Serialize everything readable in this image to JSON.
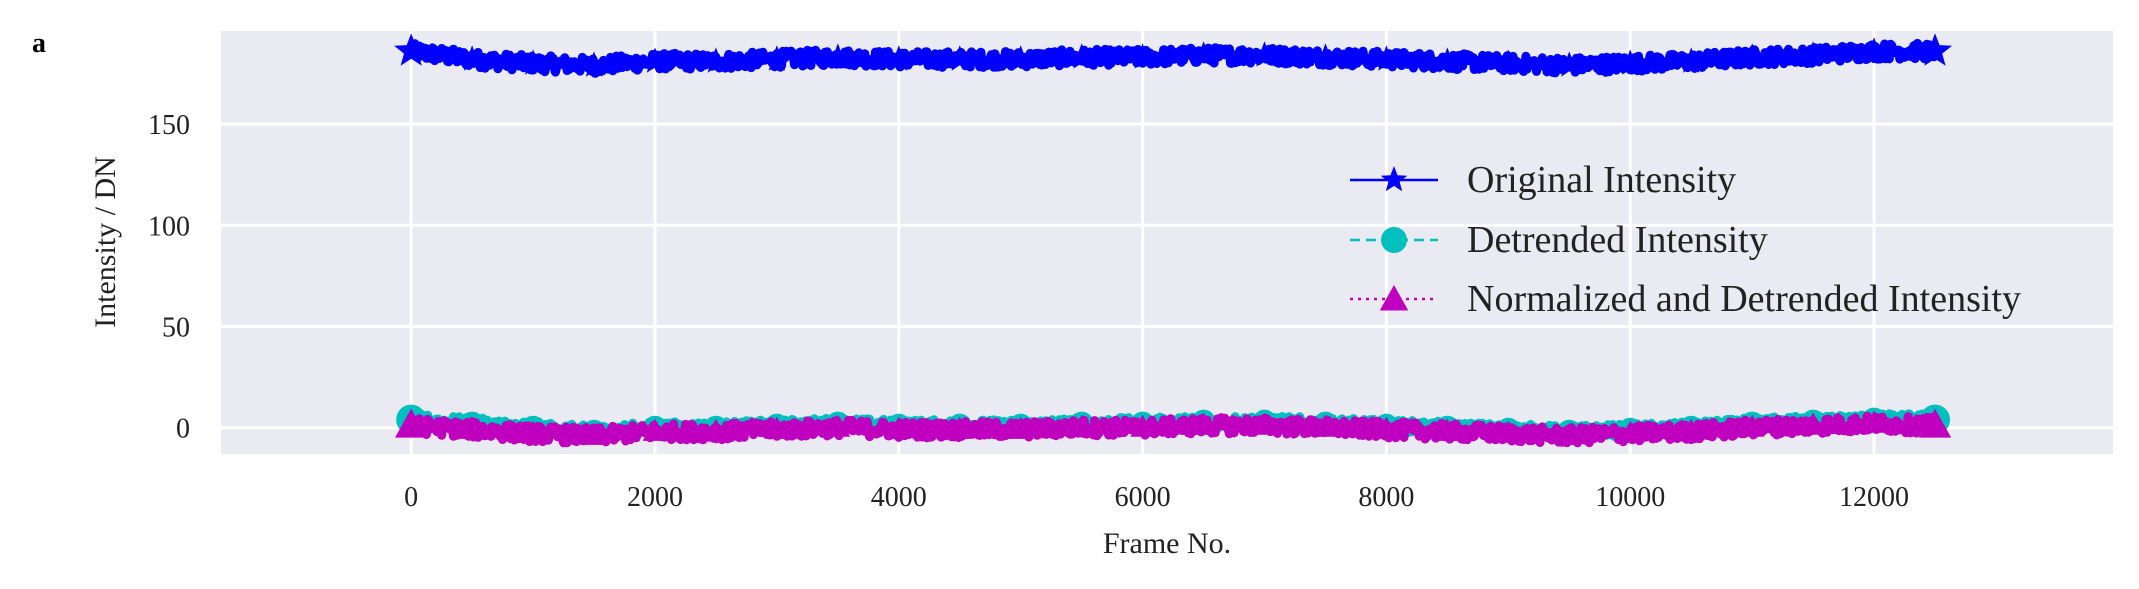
{
  "figure": {
    "panel_label": "a",
    "colors": {
      "plot_background": "#eaeaf2",
      "grid": "#ffffff",
      "original": "#0000ff",
      "detrended": "#00bfbf",
      "normalized": "#bf00bf"
    }
  },
  "chart_data": {
    "type": "line",
    "title": "",
    "xlabel": "Frame No.",
    "ylabel": "Intensity / DN",
    "xlim": [
      -1560,
      13960
    ],
    "ylim": [
      -13,
      196
    ],
    "xticks": [
      0,
      2000,
      4000,
      6000,
      8000,
      10000,
      12000
    ],
    "xtick_labels": [
      "0",
      "2000",
      "4000",
      "6000",
      "8000",
      "10000",
      "12000"
    ],
    "yticks": [
      0,
      50,
      100,
      150
    ],
    "ytick_labels": [
      "0",
      "50",
      "100",
      "150"
    ],
    "grid": true,
    "legend_position": "right",
    "x": [
      0,
      500,
      1000,
      1500,
      2000,
      2500,
      3000,
      3500,
      4000,
      4500,
      5000,
      5500,
      6000,
      6500,
      7000,
      7500,
      8000,
      8500,
      9000,
      9500,
      10000,
      10500,
      11000,
      11500,
      12000,
      12500
    ],
    "series": [
      {
        "name": "Original Intensity",
        "color": "#0000ff",
        "linestyle": "solid",
        "marker": "star",
        "noise": 4,
        "values": [
          186,
          182,
          180,
          179,
          181,
          181,
          182,
          183,
          182,
          182,
          182,
          183,
          183,
          184,
          184,
          183,
          182,
          181,
          180,
          179,
          180,
          181,
          183,
          184,
          186,
          186
        ]
      },
      {
        "name": "Detrended Intensity",
        "color": "#00bfbf",
        "linestyle": "dashed",
        "marker": "circle",
        "noise": 3,
        "values": [
          4,
          2,
          0,
          -2,
          0,
          0,
          1,
          2,
          1,
          1,
          1,
          2,
          2,
          3,
          3,
          2,
          1,
          0,
          -1,
          -2,
          -1,
          0,
          2,
          3,
          4,
          4
        ]
      },
      {
        "name": "Normalized and Detrended Intensity",
        "color": "#bf00bf",
        "linestyle": "dotted",
        "marker": "triangle",
        "noise": 4,
        "values": [
          1,
          -1,
          -3,
          -4,
          -2,
          -2,
          -1,
          0,
          -1,
          -1,
          -1,
          0,
          0,
          1,
          1,
          0,
          -1,
          -2,
          -3,
          -4,
          -3,
          -2,
          0,
          1,
          2,
          1
        ]
      }
    ]
  }
}
